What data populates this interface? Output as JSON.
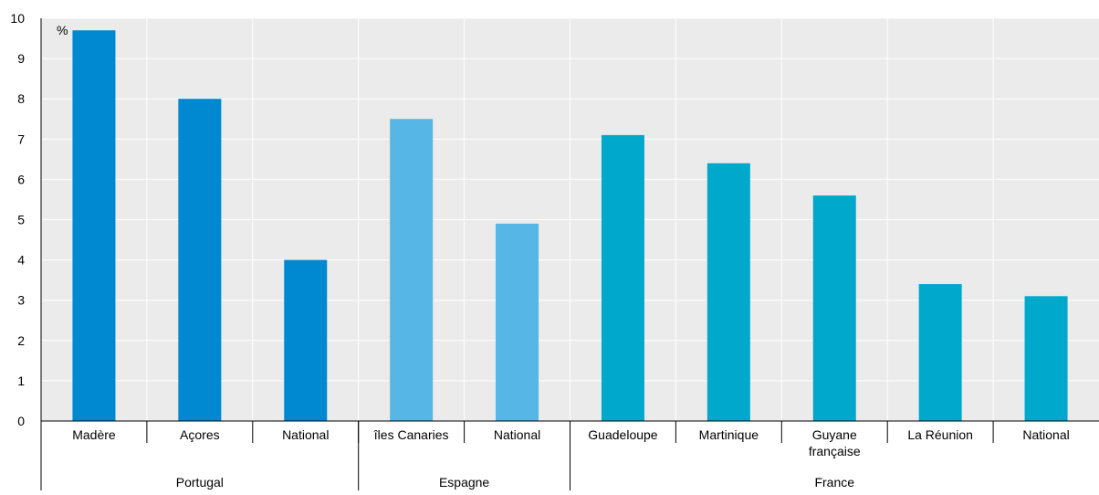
{
  "chart_data": {
    "type": "bar",
    "unit_label": "%",
    "ylim": [
      0,
      10
    ],
    "yticks": [
      0,
      1,
      2,
      3,
      4,
      5,
      6,
      7,
      8,
      9,
      10
    ],
    "grid": true,
    "categories": [
      "Madère",
      "Açores",
      "National",
      "îles Canaries",
      "National",
      "Guadeloupe",
      "Martinique",
      "Guyane\nfrançaise",
      "La Réunion",
      "National"
    ],
    "values": [
      9.7,
      8.0,
      4.0,
      7.5,
      4.9,
      7.1,
      6.4,
      5.6,
      3.4,
      3.1
    ],
    "groups": [
      {
        "name": "Portugal",
        "span": [
          0,
          2
        ],
        "color": "#0088d1"
      },
      {
        "name": "Espagne",
        "span": [
          3,
          4
        ],
        "color": "#56b6e6"
      },
      {
        "name": "France",
        "span": [
          5,
          9
        ],
        "color": "#00a9cc"
      }
    ]
  }
}
